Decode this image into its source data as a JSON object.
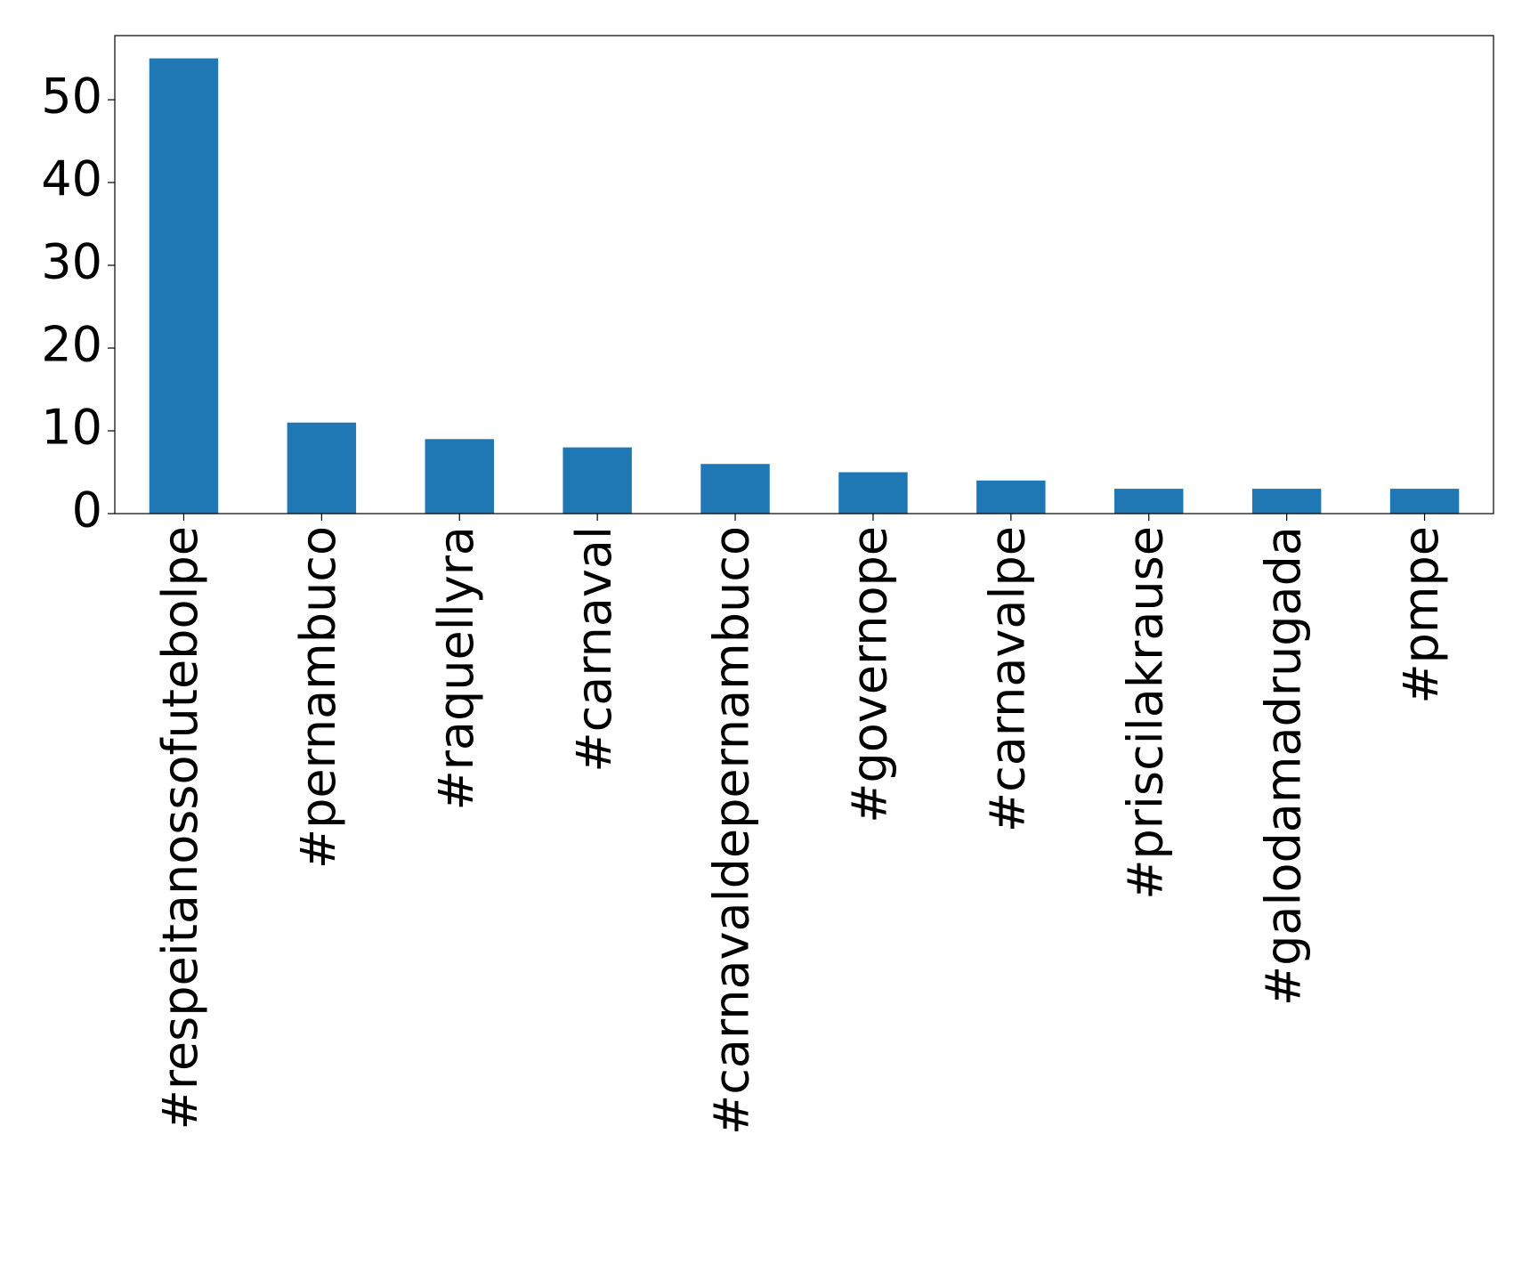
{
  "chart_data": {
    "type": "bar",
    "categories": [
      "#respeitanossofutebolpe",
      "#pernambuco",
      "#raquellyra",
      "#carnaval",
      "#carnavaldepernambuco",
      "#governope",
      "#carnavalpe",
      "#priscilakrause",
      "#galodamadrugada",
      "#pmpe"
    ],
    "values": [
      55,
      11,
      9,
      8,
      6,
      5,
      4,
      3,
      3,
      3
    ],
    "color": "#1f77b4",
    "ylim": [
      0,
      57.75
    ],
    "yticks": [
      0,
      10,
      20,
      30,
      40,
      50
    ],
    "grid": false
  }
}
